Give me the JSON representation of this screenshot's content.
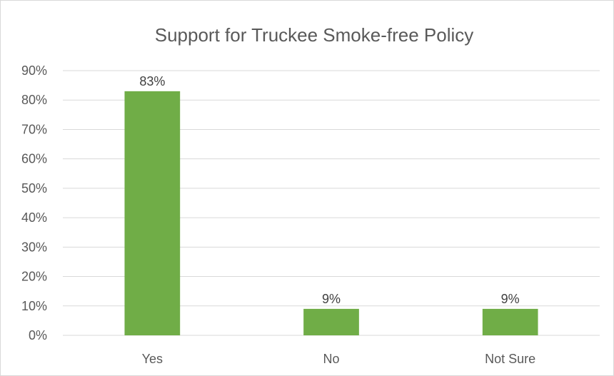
{
  "chart_data": {
    "type": "bar",
    "title": "Support for Truckee Smoke-free Policy",
    "categories": [
      "Yes",
      "No",
      "Not Sure"
    ],
    "values": [
      83,
      9,
      9
    ],
    "data_labels": [
      "83%",
      "9%",
      "9%"
    ],
    "ylim": [
      0,
      90
    ],
    "y_ticks": [
      0,
      10,
      20,
      30,
      40,
      50,
      60,
      70,
      80,
      90
    ],
    "y_tick_labels": [
      "0%",
      "10%",
      "20%",
      "30%",
      "40%",
      "50%",
      "60%",
      "70%",
      "80%",
      "90%"
    ],
    "xlabel": "",
    "ylabel": "",
    "grid": true,
    "legend": "none",
    "bar_color": "#70ad47",
    "gridline_color": "#d9d9d9"
  }
}
